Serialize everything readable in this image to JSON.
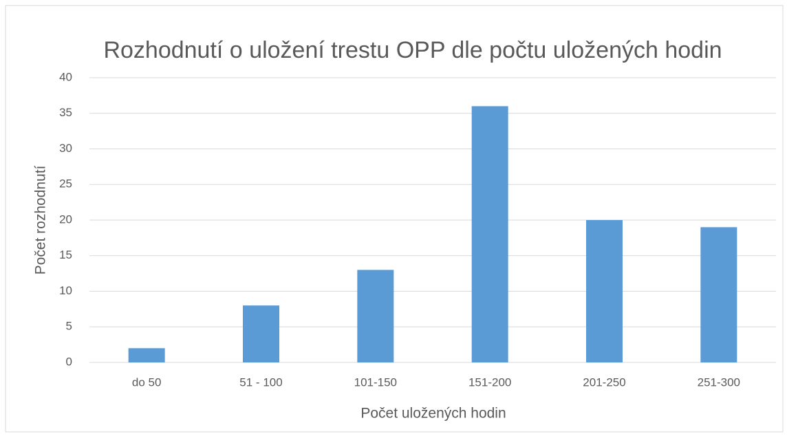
{
  "chart_data": {
    "type": "bar",
    "title": "Rozhodnutí o uložení trestu OPP dle počtu uložených hodin",
    "x_label": "Počet uložených hodin",
    "y_label": "Počet rozhodnutí",
    "categories": [
      "do 50",
      "51 - 100",
      "101-150",
      "151-200",
      "201-250",
      "251-300"
    ],
    "values": [
      2,
      8,
      13,
      36,
      20,
      19
    ],
    "color": "#5b9bd5",
    "ylim": [
      0,
      40
    ],
    "yticks": [
      0,
      5,
      10,
      15,
      20,
      25,
      30,
      35,
      40
    ],
    "grid": true
  }
}
